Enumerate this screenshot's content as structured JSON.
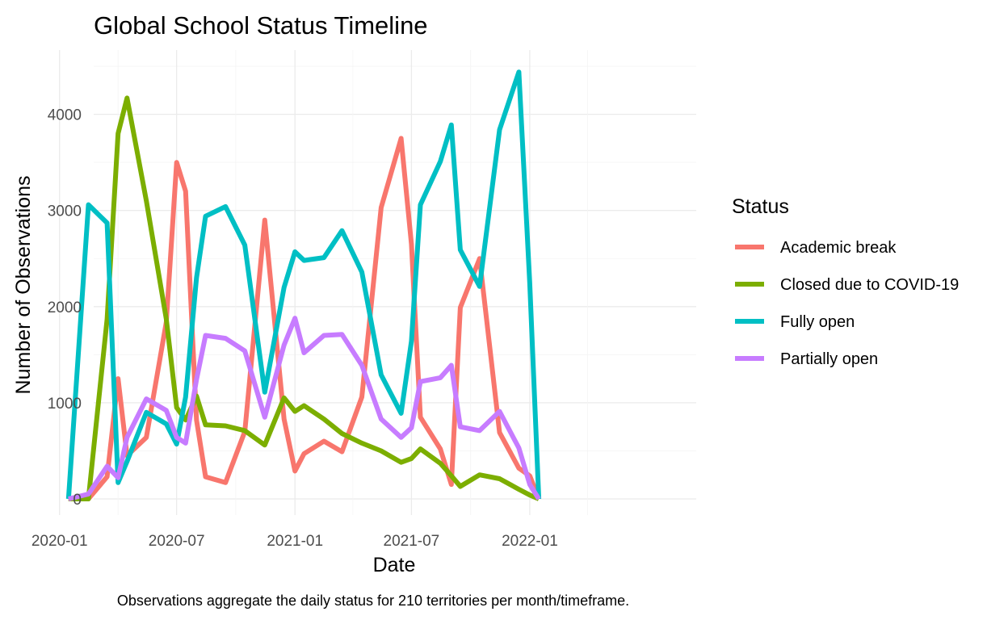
{
  "chart_data": {
    "type": "line",
    "title": "Global School Status Timeline",
    "xlabel": "Date",
    "ylabel": "Number of Observations",
    "caption": "Observations aggregate the daily status for 210 territories per month/timeframe.",
    "legend_title": "Status",
    "legend_position": "right",
    "grid": true,
    "x_tick_labels": [
      "2020-01",
      "2020-07",
      "2021-01",
      "2021-07",
      "2022-01"
    ],
    "y_ticks": [
      0,
      1000,
      2000,
      3000,
      4000
    ],
    "x": [
      "2020-01-15",
      "2020-02-15",
      "2020-03-15",
      "2020-04-01",
      "2020-04-15",
      "2020-05-15",
      "2020-06-15",
      "2020-07-01",
      "2020-07-15",
      "2020-08-01",
      "2020-08-15",
      "2020-09-15",
      "2020-10-15",
      "2020-11-15",
      "2020-12-15",
      "2021-01-01",
      "2021-01-15",
      "2021-02-15",
      "2021-03-15",
      "2021-04-15",
      "2021-05-15",
      "2021-06-15",
      "2021-07-01",
      "2021-07-15",
      "2021-08-15",
      "2021-09-01",
      "2021-09-15",
      "2021-10-15",
      "2021-11-15",
      "2021-12-15",
      "2022-01-01",
      "2022-01-15",
      "2022-02-15",
      "2022-03-15",
      "2022-04-15",
      "2022-05-15"
    ],
    "ylim": [
      -150,
      4550
    ],
    "series": [
      {
        "name": "Academic break",
        "color": "#F8766D",
        "values": [
          0,
          0,
          230,
          1250,
          450,
          640,
          1840,
          3500,
          3200,
          820,
          230,
          170,
          700,
          2900,
          830,
          290,
          470,
          600,
          490,
          1060,
          3030,
          3750,
          2650,
          850,
          520,
          150,
          1990,
          2500,
          690,
          320,
          240,
          0,
          null,
          null,
          null,
          null
        ]
      },
      {
        "name": "Closed due to COVID-19",
        "color": "#7CAE00",
        "values": [
          0,
          0,
          1870,
          3800,
          4170,
          3100,
          1870,
          950,
          820,
          1070,
          770,
          760,
          710,
          560,
          1050,
          910,
          970,
          830,
          680,
          580,
          500,
          380,
          420,
          520,
          370,
          240,
          130,
          250,
          210,
          100,
          40,
          0,
          null,
          null,
          null,
          null
        ]
      },
      {
        "name": "Fully open",
        "color": "#00BFC4",
        "values": [
          0,
          3060,
          2870,
          170,
          390,
          900,
          780,
          570,
          1060,
          2300,
          2940,
          3040,
          2640,
          1110,
          2200,
          2570,
          2480,
          2510,
          2790,
          2360,
          1290,
          890,
          1640,
          3060,
          3510,
          3890,
          2590,
          2210,
          3840,
          4440,
          2240,
          0,
          null,
          null,
          null,
          null
        ]
      },
      {
        "name": "Partially open",
        "color": "#C77CFF",
        "values": [
          0,
          50,
          340,
          220,
          640,
          1040,
          920,
          640,
          580,
          1240,
          1700,
          1670,
          1540,
          850,
          1600,
          1880,
          1520,
          1700,
          1710,
          1390,
          830,
          640,
          740,
          1220,
          1260,
          1390,
          750,
          710,
          910,
          530,
          150,
          0,
          null,
          null,
          null,
          null
        ]
      }
    ]
  }
}
